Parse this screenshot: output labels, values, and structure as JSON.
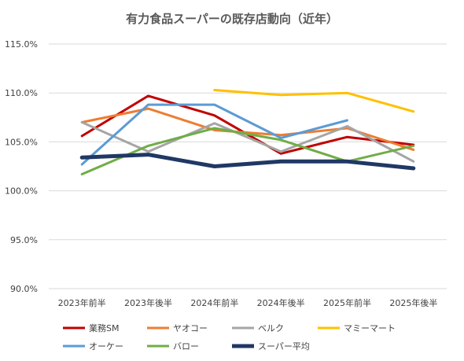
{
  "chart_data": {
    "type": "line",
    "title": "有力食品スーパーの既存店動向（近年）",
    "xlabel": "",
    "ylabel": "",
    "categories": [
      "2023年前半",
      "2023年後半",
      "2024年前半",
      "2024年後半",
      "2025年前半",
      "2025年後半"
    ],
    "ylim": [
      90.0,
      115.0
    ],
    "yticks": [
      "115.0%",
      "110.0%",
      "105.0%",
      "100.0%",
      "95.0%",
      "90.0%"
    ],
    "ytick_values": [
      115,
      110,
      105,
      100,
      95,
      90
    ],
    "grid": true,
    "legend_position": "bottom",
    "series": [
      {
        "name": "業務SM",
        "color": "#C00000",
        "values": [
          105.6,
          109.7,
          107.7,
          103.8,
          105.5,
          104.7
        ]
      },
      {
        "name": "ヤオコー",
        "color": "#ED7D31",
        "values": [
          107.0,
          108.4,
          106.2,
          105.7,
          106.4,
          104.2
        ]
      },
      {
        "name": "ベルク",
        "color": "#A5A5A5",
        "values": [
          107.0,
          104.0,
          106.9,
          104.0,
          106.6,
          103.0
        ]
      },
      {
        "name": "マミーマート",
        "color": "#FFC000",
        "values": [
          null,
          null,
          110.3,
          109.8,
          110.0,
          108.1
        ]
      },
      {
        "name": "オーケー",
        "color": "#5B9BD5",
        "values": [
          102.7,
          108.8,
          108.8,
          105.4,
          107.2,
          null
        ]
      },
      {
        "name": "バロー",
        "color": "#70AD47",
        "values": [
          101.7,
          104.6,
          106.4,
          105.2,
          103.0,
          104.6
        ]
      },
      {
        "name": "スーパー平均",
        "color": "#203864",
        "values": [
          103.4,
          103.7,
          102.5,
          103.0,
          103.0,
          102.3
        ],
        "bold": true
      }
    ]
  }
}
